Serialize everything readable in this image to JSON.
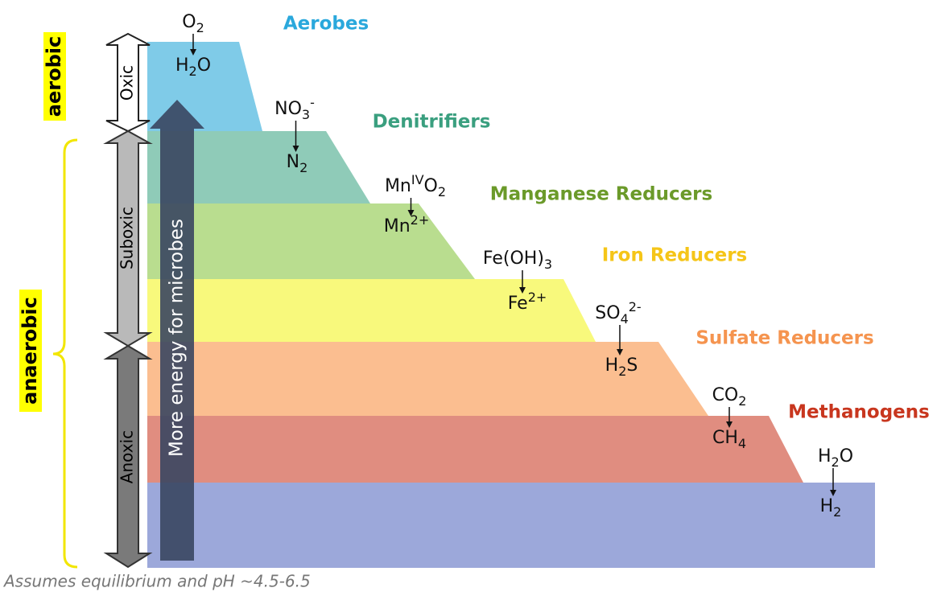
{
  "zones": {
    "aerobic": "aerobic",
    "anaerobic": "anaerobic"
  },
  "arrows": {
    "oxic": "Oxic",
    "suboxic": "Suboxic",
    "anoxic": "Anoxic"
  },
  "energy_arrow": "More energy for microbes",
  "bands": [
    {
      "name": "Aerobes",
      "color": "#7fcbe8",
      "label_color": "#2aa8dc",
      "oxidant": [
        {
          "t": "O"
        },
        {
          "sub": "2"
        }
      ],
      "product": [
        {
          "t": "H"
        },
        {
          "sub": "2"
        },
        {
          "t": "O"
        }
      ]
    },
    {
      "name": "Denitrifiers",
      "color": "#8fcbb8",
      "label_color": "#3a9f7f",
      "oxidant": [
        {
          "t": "NO"
        },
        {
          "sub": "3"
        },
        {
          "sup": "-"
        }
      ],
      "product": [
        {
          "t": "N"
        },
        {
          "sub": "2"
        }
      ]
    },
    {
      "name": "Manganese Reducers",
      "color": "#b9dd8f",
      "label_color": "#6b9a2a",
      "oxidant": [
        {
          "t": "Mn"
        },
        {
          "sup": "IV"
        },
        {
          "t": "O"
        },
        {
          "sub": "2"
        }
      ],
      "product": [
        {
          "t": "Mn"
        },
        {
          "sup": "2+"
        }
      ]
    },
    {
      "name": "Iron Reducers",
      "color": "#f8f97c",
      "label_color": "#f5c518",
      "oxidant": [
        {
          "t": "Fe(OH)"
        },
        {
          "sub": "3"
        }
      ],
      "product": [
        {
          "t": "Fe"
        },
        {
          "sup": "2+"
        }
      ]
    },
    {
      "name": "Sulfate Reducers",
      "color": "#fbbe90",
      "label_color": "#f5944f",
      "oxidant": [
        {
          "t": "SO"
        },
        {
          "sub": "4"
        },
        {
          "sup": "2-"
        }
      ],
      "product": [
        {
          "t": "H"
        },
        {
          "sub": "2"
        },
        {
          "t": "S"
        }
      ]
    },
    {
      "name": "Methanogens",
      "color": "#e08d80",
      "label_color": "#c8361e",
      "oxidant": [
        {
          "t": "CO"
        },
        {
          "sub": "2"
        }
      ],
      "product": [
        {
          "t": "CH"
        },
        {
          "sub": "4"
        }
      ]
    },
    {
      "color": "#9ca8da",
      "oxidant": [
        {
          "t": "H"
        },
        {
          "sub": "2"
        },
        {
          "t": "O"
        }
      ],
      "product": [
        {
          "t": "H"
        },
        {
          "sub": "2"
        }
      ]
    }
  ],
  "footnote": "Assumes equilibrium and pH ~4.5-6.5"
}
